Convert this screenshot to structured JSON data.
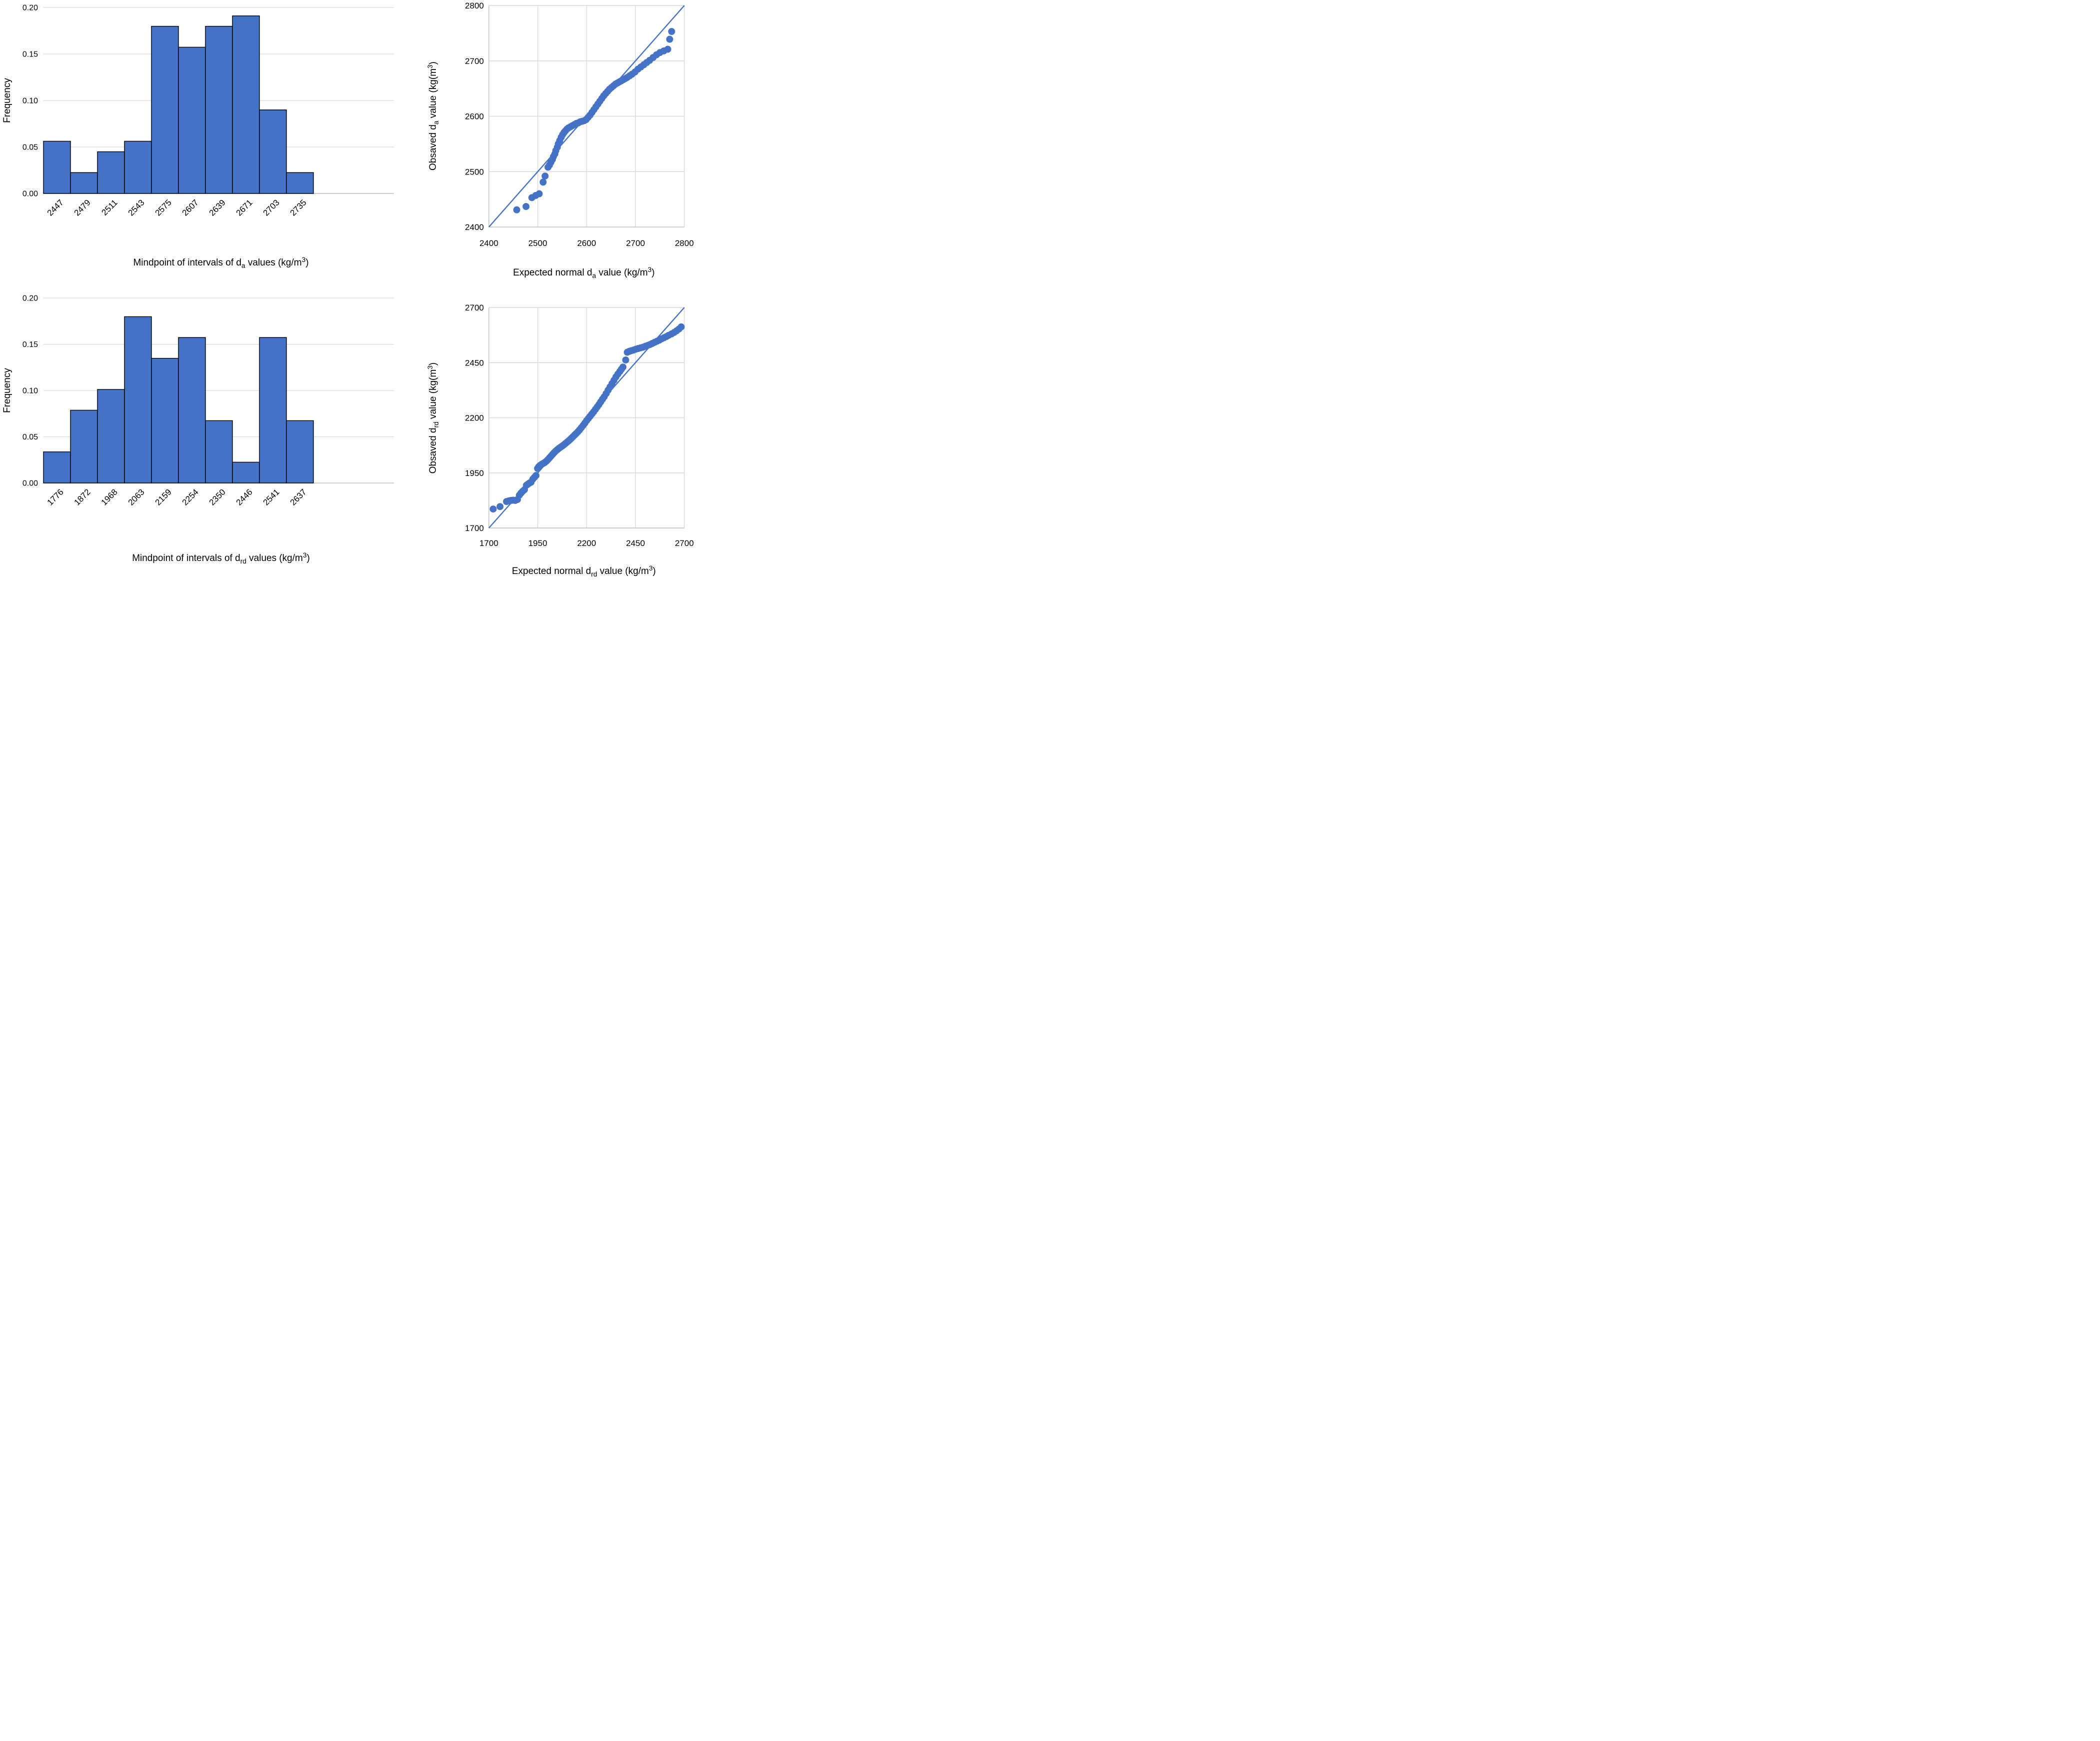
{
  "page": {
    "background": "#FFFFFF",
    "description": "Four-panel statistical figure: frequency histograms and normal Q-Q plots for da and drd density values"
  },
  "colors": {
    "series_blue": "#4472C4",
    "bar_border": "#000000",
    "gridline": "#D9D9D9",
    "axis_line": "#BFBFBF",
    "text": "#000000"
  },
  "chart_data": [
    {
      "id": "hist-da",
      "type": "bar",
      "title": "",
      "xlabel": "Mindpoint of intervals of d_{a} values (kg/m^{3})",
      "ylabel": "Frequency",
      "categories": [
        "2447",
        "2479",
        "2511",
        "2543",
        "2575",
        "2607",
        "2639",
        "2671",
        "2703",
        "2735"
      ],
      "values": [
        0.0562,
        0.0225,
        0.0449,
        0.0562,
        0.1798,
        0.1573,
        0.1798,
        0.191,
        0.0899,
        0.0225
      ],
      "ylim": [
        0,
        0.2
      ],
      "yticks": [
        "0.00",
        "0.05",
        "0.10",
        "0.15",
        "0.20"
      ],
      "grid": "horizontal",
      "legend": "none",
      "bar_gap": 0
    },
    {
      "id": "qq-da",
      "type": "scatter",
      "title": "",
      "xlabel": "Expected normal d_{a} value (kg/m^{3})",
      "ylabel": "Obsaved d_{a} value (kg(m^{3})",
      "xlim": [
        2400,
        2800
      ],
      "ylim": [
        2400,
        2800
      ],
      "xticks": [
        "2400",
        "2500",
        "2600",
        "2700",
        "2800"
      ],
      "yticks": [
        "2400",
        "2500",
        "2600",
        "2700",
        "2800"
      ],
      "grid": "both",
      "legend": "none",
      "reference_line": {
        "x1": 2400,
        "y1": 2400,
        "x2": 2800,
        "y2": 2800
      },
      "points": [
        [
          2457,
          2431
        ],
        [
          2476,
          2437
        ],
        [
          2488,
          2453
        ],
        [
          2496,
          2457
        ],
        [
          2503,
          2460
        ],
        [
          2511,
          2481
        ],
        [
          2515,
          2492
        ],
        [
          2521,
          2508
        ],
        [
          2524,
          2512
        ],
        [
          2527,
          2517
        ],
        [
          2530,
          2522
        ],
        [
          2532,
          2527
        ],
        [
          2535,
          2532
        ],
        [
          2537,
          2538
        ],
        [
          2540,
          2544
        ],
        [
          2542,
          2550
        ],
        [
          2545,
          2556
        ],
        [
          2548,
          2562
        ],
        [
          2551,
          2567
        ],
        [
          2554,
          2571
        ],
        [
          2557,
          2574
        ],
        [
          2560,
          2577
        ],
        [
          2563,
          2579
        ],
        [
          2567,
          2581
        ],
        [
          2571,
          2583
        ],
        [
          2575,
          2585
        ],
        [
          2579,
          2587
        ],
        [
          2583,
          2588
        ],
        [
          2587,
          2590
        ],
        [
          2591,
          2591
        ],
        [
          2595,
          2592
        ],
        [
          2599,
          2594
        ],
        [
          2603,
          2598
        ],
        [
          2607,
          2602
        ],
        [
          2611,
          2607
        ],
        [
          2615,
          2612
        ],
        [
          2619,
          2617
        ],
        [
          2623,
          2622
        ],
        [
          2627,
          2627
        ],
        [
          2631,
          2632
        ],
        [
          2635,
          2637
        ],
        [
          2639,
          2641
        ],
        [
          2643,
          2645
        ],
        [
          2647,
          2649
        ],
        [
          2651,
          2652
        ],
        [
          2655,
          2655
        ],
        [
          2659,
          2658
        ],
        [
          2663,
          2660
        ],
        [
          2667,
          2662
        ],
        [
          2671,
          2664
        ],
        [
          2675,
          2666
        ],
        [
          2679,
          2668
        ],
        [
          2683,
          2670
        ],
        [
          2688,
          2673
        ],
        [
          2693,
          2676
        ],
        [
          2699,
          2680
        ],
        [
          2705,
          2685
        ],
        [
          2711,
          2689
        ],
        [
          2717,
          2693
        ],
        [
          2723,
          2697
        ],
        [
          2729,
          2701
        ],
        [
          2736,
          2706
        ],
        [
          2743,
          2711
        ],
        [
          2750,
          2715
        ],
        [
          2758,
          2718
        ],
        [
          2766,
          2721
        ],
        [
          2770,
          2739
        ],
        [
          2774,
          2753
        ]
      ]
    },
    {
      "id": "hist-drd",
      "type": "bar",
      "title": "",
      "xlabel": "Mindpoint of intervals of d_{rd} values (kg/m^{3})",
      "ylabel": "Frequency",
      "categories": [
        "1776",
        "1872",
        "1968",
        "2063",
        "2159",
        "2254",
        "2350",
        "2446",
        "2541",
        "2637"
      ],
      "values": [
        0.0337,
        0.0787,
        0.1011,
        0.1798,
        0.1348,
        0.1573,
        0.0674,
        0.0225,
        0.1573,
        0.0674
      ],
      "ylim": [
        0,
        0.2
      ],
      "yticks": [
        "0.00",
        "0.05",
        "0.10",
        "0.15",
        "0.20"
      ],
      "grid": "horizontal",
      "legend": "none",
      "bar_gap": 0
    },
    {
      "id": "qq-drd",
      "type": "scatter",
      "title": "",
      "xlabel": "Expected normal d_{rd} value (kg/m^{3})",
      "ylabel": "Obsaved d_{rd} value (kg(m^{3})",
      "xlim": [
        1700,
        2700
      ],
      "ylim": [
        1700,
        2700
      ],
      "xticks": [
        "1700",
        "1950",
        "2200",
        "2450",
        "2700"
      ],
      "yticks": [
        "1700",
        "1950",
        "2200",
        "2450",
        "2700"
      ],
      "grid": "both",
      "legend": "none",
      "reference_line": {
        "x1": 1700,
        "y1": 1700,
        "x2": 2700,
        "y2": 2700
      },
      "points": [
        [
          1722,
          1786
        ],
        [
          1757,
          1797
        ],
        [
          1790,
          1820
        ],
        [
          1802,
          1823
        ],
        [
          1813,
          1825
        ],
        [
          1824,
          1826
        ],
        [
          1835,
          1825
        ],
        [
          1846,
          1829
        ],
        [
          1856,
          1849
        ],
        [
          1864,
          1858
        ],
        [
          1872,
          1866
        ],
        [
          1882,
          1874
        ],
        [
          1892,
          1894
        ],
        [
          1900,
          1899
        ],
        [
          1908,
          1904
        ],
        [
          1916,
          1908
        ],
        [
          1925,
          1922
        ],
        [
          1933,
          1930
        ],
        [
          1941,
          1938
        ],
        [
          1949,
          1970
        ],
        [
          1955,
          1978
        ],
        [
          1962,
          1984
        ],
        [
          1970,
          1989
        ],
        [
          1978,
          1993
        ],
        [
          1986,
          1997
        ],
        [
          1994,
          2003
        ],
        [
          2002,
          2010
        ],
        [
          2010,
          2018
        ],
        [
          2018,
          2026
        ],
        [
          2026,
          2034
        ],
        [
          2034,
          2042
        ],
        [
          2042,
          2049
        ],
        [
          2050,
          2055
        ],
        [
          2058,
          2061
        ],
        [
          2066,
          2066
        ],
        [
          2074,
          2071
        ],
        [
          2082,
          2076
        ],
        [
          2090,
          2082
        ],
        [
          2098,
          2088
        ],
        [
          2106,
          2094
        ],
        [
          2114,
          2100
        ],
        [
          2122,
          2107
        ],
        [
          2130,
          2114
        ],
        [
          2138,
          2121
        ],
        [
          2146,
          2128
        ],
        [
          2155,
          2136
        ],
        [
          2164,
          2145
        ],
        [
          2173,
          2155
        ],
        [
          2182,
          2165
        ],
        [
          2191,
          2176
        ],
        [
          2200,
          2187
        ],
        [
          2209,
          2197
        ],
        [
          2218,
          2207
        ],
        [
          2227,
          2217
        ],
        [
          2236,
          2227
        ],
        [
          2245,
          2238
        ],
        [
          2254,
          2249
        ],
        [
          2263,
          2260
        ],
        [
          2272,
          2272
        ],
        [
          2281,
          2284
        ],
        [
          2290,
          2295
        ],
        [
          2300,
          2310
        ],
        [
          2310,
          2325
        ],
        [
          2320,
          2340
        ],
        [
          2330,
          2355
        ],
        [
          2340,
          2370
        ],
        [
          2350,
          2385
        ],
        [
          2360,
          2398
        ],
        [
          2370,
          2410
        ],
        [
          2378,
          2420
        ],
        [
          2386,
          2430
        ],
        [
          2400,
          2462
        ],
        [
          2408,
          2497
        ],
        [
          2418,
          2501
        ],
        [
          2428,
          2504
        ],
        [
          2440,
          2507
        ],
        [
          2452,
          2511
        ],
        [
          2464,
          2514
        ],
        [
          2476,
          2517
        ],
        [
          2488,
          2520
        ],
        [
          2500,
          2524
        ],
        [
          2512,
          2528
        ],
        [
          2524,
          2532
        ],
        [
          2536,
          2537
        ],
        [
          2548,
          2542
        ],
        [
          2560,
          2547
        ],
        [
          2572,
          2552
        ],
        [
          2584,
          2558
        ],
        [
          2596,
          2563
        ],
        [
          2608,
          2568
        ],
        [
          2620,
          2574
        ],
        [
          2634,
          2580
        ],
        [
          2648,
          2587
        ],
        [
          2660,
          2594
        ],
        [
          2672,
          2602
        ],
        [
          2684,
          2612
        ]
      ]
    }
  ]
}
